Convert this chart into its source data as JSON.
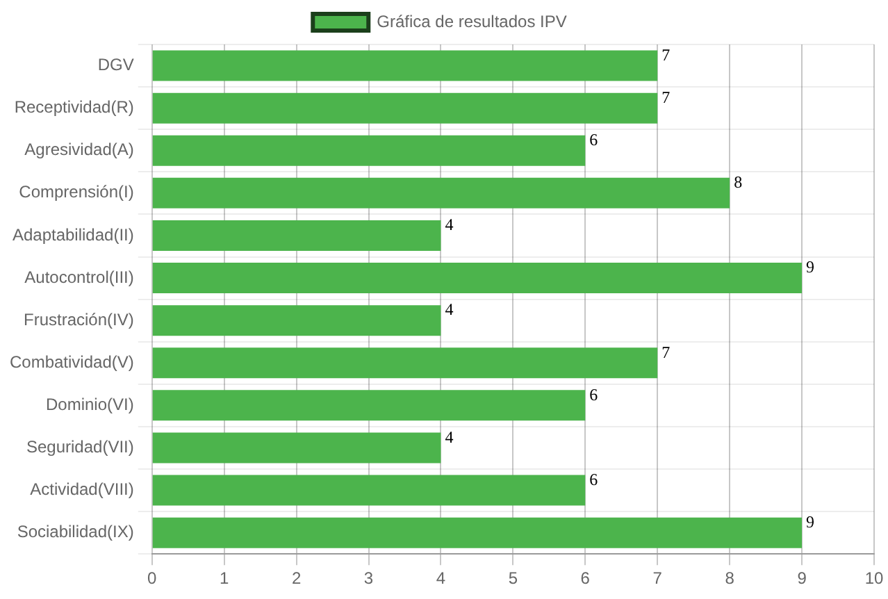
{
  "chart_data": {
    "type": "bar",
    "orientation": "horizontal",
    "categories": [
      "DGV",
      "Receptividad(R)",
      "Agresividad(A)",
      "Comprensión(I)",
      "Adaptabilidad(II)",
      "Autocontrol(III)",
      "Frustración(IV)",
      "Combatividad(V)",
      "Dominio(VI)",
      "Seguridad(VII)",
      "Actividad(VIII)",
      "Sociabilidad(IX)"
    ],
    "series": [
      {
        "name": "Gráfica de resultados IPV",
        "color": "#4cb44c",
        "values": [
          7,
          7,
          6,
          8,
          4,
          9,
          4,
          7,
          6,
          4,
          6,
          9
        ]
      }
    ],
    "xlim": [
      0,
      10
    ],
    "xticks": [
      0,
      1,
      2,
      3,
      4,
      5,
      6,
      7,
      8,
      9,
      10
    ],
    "grid": true,
    "legend": "top",
    "data_labels": true
  }
}
